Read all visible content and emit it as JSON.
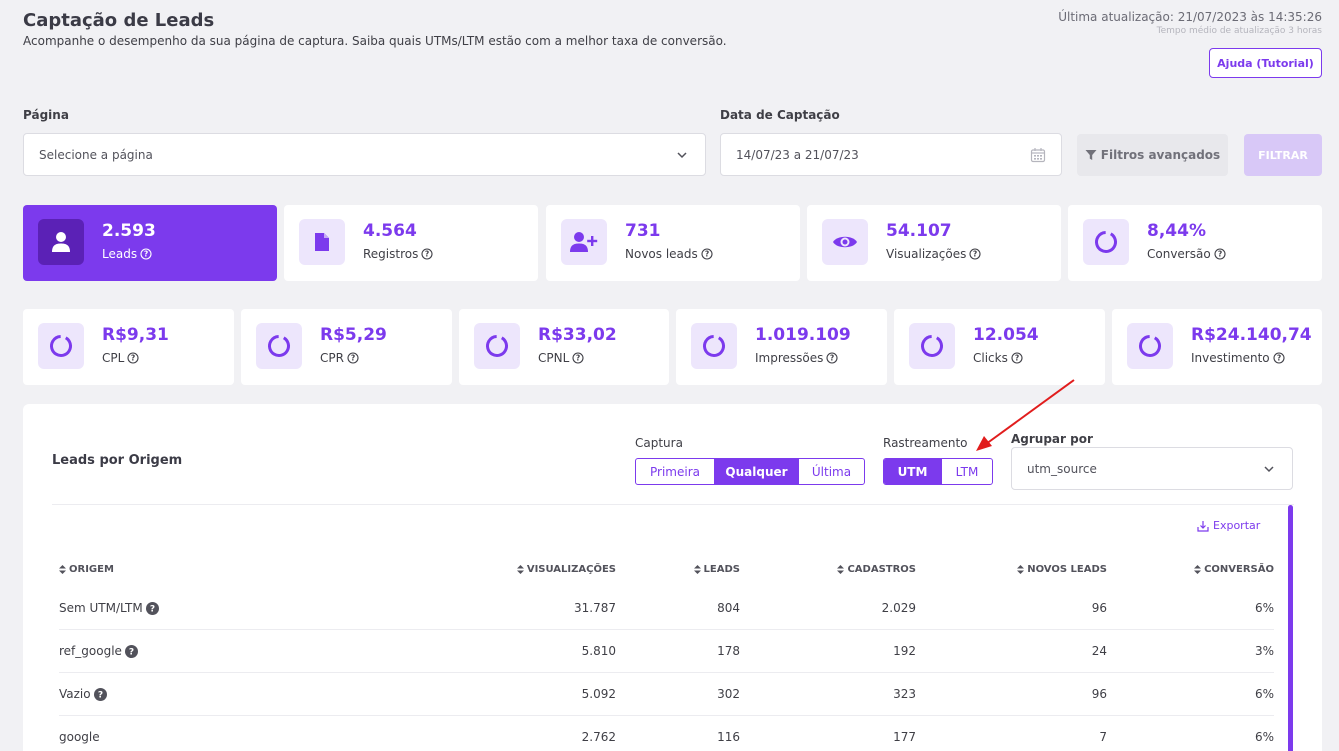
{
  "header": {
    "title": "Captação de Leads",
    "subtitle": "Acompanhe o desempenho da sua página de captura. Saiba quais UTMs/LTM estão com a melhor taxa de conversão.",
    "last_update": "Última atualização: 21/07/2023 às 14:35:26",
    "avg_update": "Tempo médio de atualização 3 horas",
    "help_label": "Ajuda (Tutorial)"
  },
  "filters": {
    "page_label": "Página",
    "page_placeholder": "Selecione a página",
    "date_label": "Data de Captação",
    "date_value": "14/07/23 a 21/07/23",
    "advanced_label": "Filtros avançados",
    "filter_label": "FILTRAR"
  },
  "kpis_top": [
    {
      "value": "2.593",
      "label": "Leads",
      "icon": "user-icon"
    },
    {
      "value": "4.564",
      "label": "Registros",
      "icon": "document-icon"
    },
    {
      "value": "731",
      "label": "Novos leads",
      "icon": "user-plus-icon"
    },
    {
      "value": "54.107",
      "label": "Visualizações",
      "icon": "eye-icon"
    },
    {
      "value": "8,44%",
      "label": "Conversão",
      "icon": "ring-icon"
    }
  ],
  "kpis_bottom": [
    {
      "value": "R$9,31",
      "label": "CPL",
      "icon": "ring-icon"
    },
    {
      "value": "R$5,29",
      "label": "CPR",
      "icon": "ring-icon"
    },
    {
      "value": "R$33,02",
      "label": "CPNL",
      "icon": "ring-icon"
    },
    {
      "value": "1.019.109",
      "label": "Impressões",
      "icon": "ring-icon"
    },
    {
      "value": "12.054",
      "label": "Clicks",
      "icon": "ring-icon"
    },
    {
      "value": "R$24.140,74",
      "label": "Investimento",
      "icon": "ring-icon"
    }
  ],
  "panel": {
    "title": "Leads por Origem",
    "capture_label": "Captura",
    "capture_options": [
      "Primeira",
      "Qualquer",
      "Última"
    ],
    "capture_selected": "Qualquer",
    "tracking_label": "Rastreamento",
    "tracking_options": [
      "UTM",
      "LTM"
    ],
    "tracking_selected": "UTM",
    "group_label": "Agrupar por",
    "group_value": "utm_source",
    "export_label": "Exportar"
  },
  "table": {
    "columns": [
      "ORIGEM",
      "VISUALIZAÇÕES",
      "LEADS",
      "CADASTROS",
      "NOVOS LEADS",
      "CONVERSÃO"
    ],
    "rows": [
      {
        "origem": "Sem UTM/LTM",
        "help": true,
        "visualizacoes": "31.787",
        "leads": "804",
        "cadastros": "2.029",
        "novos_leads": "96",
        "conversao": "6%"
      },
      {
        "origem": "ref_google",
        "help": true,
        "visualizacoes": "5.810",
        "leads": "178",
        "cadastros": "192",
        "novos_leads": "24",
        "conversao": "3%"
      },
      {
        "origem": "Vazio",
        "help": true,
        "visualizacoes": "5.092",
        "leads": "302",
        "cadastros": "323",
        "novos_leads": "96",
        "conversao": "6%"
      },
      {
        "origem": "google",
        "help": false,
        "visualizacoes": "2.762",
        "leads": "116",
        "cadastros": "177",
        "novos_leads": "7",
        "conversao": "6%"
      }
    ]
  },
  "colors": {
    "accent": "#7c3aed",
    "accent_light": "#ede6fc",
    "annotation_arrow": "#e11d1d"
  }
}
